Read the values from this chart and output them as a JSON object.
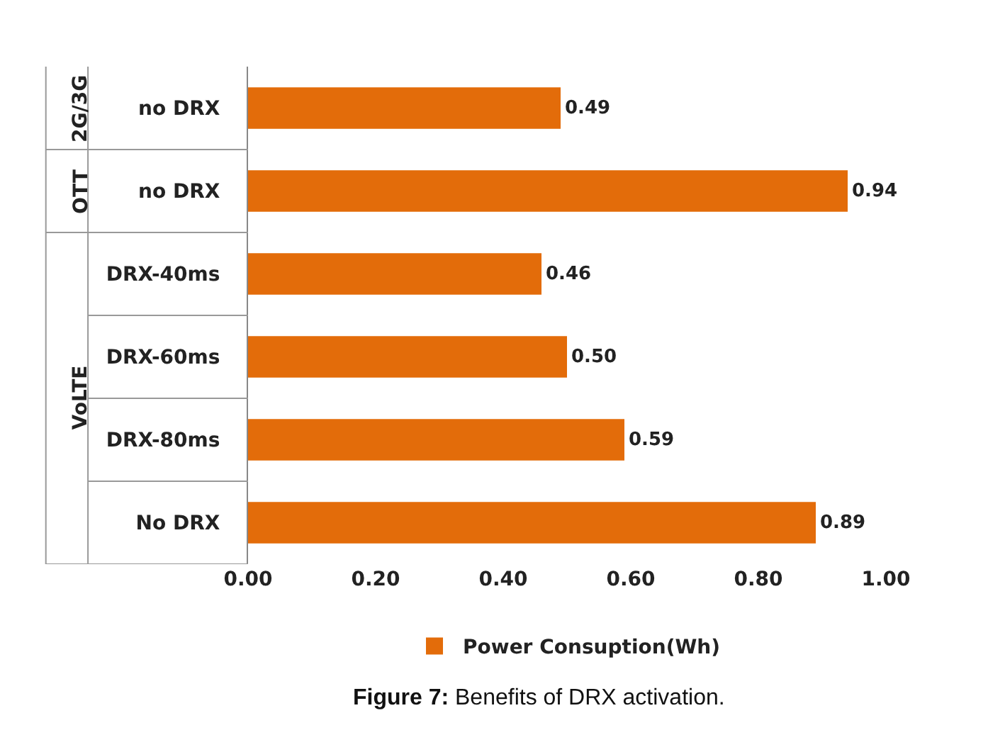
{
  "chart_data": {
    "type": "bar",
    "orientation": "horizontal",
    "categories": [
      "no DRX",
      "no DRX",
      "DRX-40ms",
      "DRX-60ms",
      "DRX-80ms",
      "No DRX"
    ],
    "series": [
      {
        "name": "Power Consuption(Wh)",
        "color": "#e36c0a",
        "values": [
          0.49,
          0.94,
          0.46,
          0.5,
          0.59,
          0.89
        ],
        "value_labels": [
          "0.49",
          "0.94",
          "0.46",
          "0.50",
          "0.59",
          "0.89"
        ]
      }
    ],
    "xlim": [
      0,
      1
    ],
    "xticks": [
      {
        "value": 0,
        "label": "0.00"
      },
      {
        "value": 0.2,
        "label": "0.20"
      },
      {
        "value": 0.4,
        "label": "0.40"
      },
      {
        "value": 0.6,
        "label": "0.60"
      },
      {
        "value": 0.8,
        "label": "0.80"
      },
      {
        "value": 1,
        "label": "1.00"
      }
    ],
    "grid": false,
    "legend": "bottom",
    "annotations": [
      "2G/3G",
      "OTT",
      "VoLTE",
      "Figure 7: Benefits of DRX activation."
    ]
  }
}
